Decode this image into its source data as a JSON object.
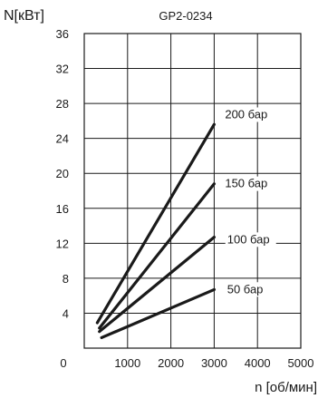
{
  "chart_data": {
    "type": "line",
    "title": "GP2-0234",
    "xlabel": "n [об/мин]",
    "ylabel": "N[кВт]",
    "xlim": [
      0,
      5000
    ],
    "ylim": [
      0,
      36
    ],
    "x_ticks": [
      1000,
      2000,
      3000,
      4000,
      5000
    ],
    "x_tick_labels": [
      "1000",
      "2000",
      "3000",
      "4000",
      "5000"
    ],
    "x_origin_label": "0",
    "y_ticks": [
      4,
      8,
      12,
      16,
      20,
      24,
      28,
      32,
      36
    ],
    "y_tick_labels": [
      "4",
      "8",
      "12",
      "16",
      "20",
      "24",
      "28",
      "32",
      "36"
    ],
    "grid": true,
    "line_color": "#1a1a1a",
    "series": [
      {
        "name": "50 бар",
        "x": [
          400,
          3000
        ],
        "y": [
          1.2,
          6.7
        ]
      },
      {
        "name": "100 бар",
        "x": [
          350,
          3000
        ],
        "y": [
          1.9,
          12.7
        ]
      },
      {
        "name": "150 бар",
        "x": [
          350,
          3000
        ],
        "y": [
          2.3,
          18.8
        ]
      },
      {
        "name": "200 бар",
        "x": [
          300,
          3000
        ],
        "y": [
          2.9,
          25.6
        ]
      }
    ]
  }
}
